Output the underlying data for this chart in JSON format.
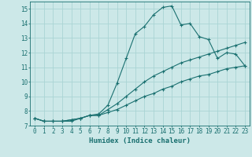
{
  "title": "",
  "xlabel": "Humidex (Indice chaleur)",
  "ylabel": "",
  "background_color": "#cce8e8",
  "grid_color": "#aad4d4",
  "line_color": "#1a7070",
  "xlim": [
    -0.5,
    23.5
  ],
  "ylim": [
    7,
    15.5
  ],
  "xticks": [
    0,
    1,
    2,
    3,
    4,
    5,
    6,
    7,
    8,
    9,
    10,
    11,
    12,
    13,
    14,
    15,
    16,
    17,
    18,
    19,
    20,
    21,
    22,
    23
  ],
  "yticks": [
    7,
    8,
    9,
    10,
    11,
    12,
    13,
    14,
    15
  ],
  "line1_x": [
    0,
    1,
    2,
    3,
    4,
    5,
    6,
    7,
    8,
    9,
    10,
    11,
    12,
    13,
    14,
    15,
    16,
    17,
    18,
    19,
    20,
    21,
    22,
    23
  ],
  "line1_y": [
    7.5,
    7.3,
    7.3,
    7.3,
    7.3,
    7.5,
    7.7,
    7.8,
    8.4,
    9.9,
    11.6,
    13.3,
    13.8,
    14.6,
    15.1,
    15.2,
    13.9,
    14.0,
    13.1,
    12.9,
    11.6,
    12.0,
    11.9,
    11.1
  ],
  "line2_x": [
    0,
    1,
    2,
    3,
    4,
    5,
    6,
    7,
    8,
    9,
    10,
    11,
    12,
    13,
    14,
    15,
    16,
    17,
    18,
    19,
    20,
    21,
    22,
    23
  ],
  "line2_y": [
    7.5,
    7.3,
    7.3,
    7.3,
    7.4,
    7.5,
    7.7,
    7.7,
    8.1,
    8.5,
    9.0,
    9.5,
    10.0,
    10.4,
    10.7,
    11.0,
    11.3,
    11.5,
    11.7,
    11.9,
    12.1,
    12.3,
    12.5,
    12.7
  ],
  "line3_x": [
    0,
    1,
    2,
    3,
    4,
    5,
    6,
    7,
    8,
    9,
    10,
    11,
    12,
    13,
    14,
    15,
    16,
    17,
    18,
    19,
    20,
    21,
    22,
    23
  ],
  "line3_y": [
    7.5,
    7.3,
    7.3,
    7.3,
    7.4,
    7.5,
    7.7,
    7.7,
    7.9,
    8.1,
    8.4,
    8.7,
    9.0,
    9.2,
    9.5,
    9.7,
    10.0,
    10.2,
    10.4,
    10.5,
    10.7,
    10.9,
    11.0,
    11.1
  ],
  "tick_fontsize": 5.5,
  "xlabel_fontsize": 6.5,
  "marker_size": 3.0
}
